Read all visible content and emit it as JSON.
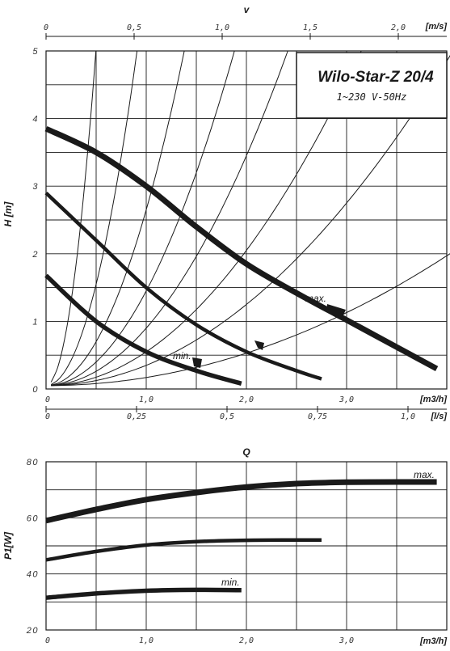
{
  "chart_data": [
    {
      "type": "line",
      "title": "Wilo-Star-Z 20/4",
      "subtitle": "1~230 V-50Hz",
      "top_axis": {
        "label": "v",
        "unit": "[m/s]",
        "ticks": [
          "0",
          "0,5",
          "1,0",
          "1,5",
          "2,0"
        ]
      },
      "x_axis": {
        "unit": "[m3/h]",
        "ticks": [
          "0",
          "1,0",
          "2,0",
          "3,0"
        ],
        "xlim": [
          0,
          4.0
        ]
      },
      "x2_axis": {
        "unit": "[l/s]",
        "ticks": [
          "0",
          "0,25",
          "0,5",
          "0,75",
          "1,0"
        ]
      },
      "y_axis": {
        "label": "H [m]",
        "ticks": [
          "0",
          "1",
          "2",
          "3",
          "4",
          "5"
        ],
        "ylim": [
          0,
          5
        ]
      },
      "grid": true,
      "series": [
        {
          "name": "max.",
          "x": [
            0,
            0.5,
            1.0,
            1.5,
            2.0,
            2.5,
            3.0,
            3.5,
            3.9
          ],
          "y": [
            3.85,
            3.5,
            3.0,
            2.4,
            1.85,
            1.42,
            1.02,
            0.62,
            0.3
          ]
        },
        {
          "x": [
            0,
            0.5,
            1.0,
            1.5,
            2.0,
            2.5,
            2.75
          ],
          "y": [
            2.9,
            2.2,
            1.5,
            0.95,
            0.55,
            0.27,
            0.15
          ]
        },
        {
          "name": "min.",
          "x": [
            0,
            0.5,
            1.0,
            1.5,
            1.95
          ],
          "y": [
            1.68,
            1.0,
            0.55,
            0.27,
            0.08
          ]
        }
      ],
      "system_curve_coefficients": [
        20,
        6,
        2.6,
        1.4,
        0.85,
        0.5,
        0.3,
        0.12
      ]
    },
    {
      "type": "line",
      "title": "Q",
      "x_axis": {
        "unit": "[m3/h]",
        "ticks": [
          "0",
          "1,0",
          "2,0",
          "3,0"
        ],
        "xlim": [
          0,
          4.0
        ]
      },
      "y_axis": {
        "label": "P1[W]",
        "ticks": [
          "20",
          "40",
          "60",
          "80"
        ],
        "ylim": [
          20,
          80
        ]
      },
      "grid": true,
      "series": [
        {
          "name": "max.",
          "x": [
            0,
            0.5,
            1.0,
            1.5,
            2.0,
            2.5,
            3.0,
            3.5,
            3.9
          ],
          "y": [
            59,
            63,
            66.5,
            69,
            71,
            72.2,
            72.7,
            72.8,
            72.8
          ]
        },
        {
          "x": [
            0,
            0.5,
            1.0,
            1.5,
            2.0,
            2.5,
            2.75
          ],
          "y": [
            45,
            48,
            50.3,
            51.5,
            52,
            52.1,
            52.1
          ]
        },
        {
          "name": "min.",
          "x": [
            0,
            0.5,
            1.0,
            1.5,
            1.95
          ],
          "y": [
            31.5,
            33,
            34,
            34.3,
            34.2
          ]
        }
      ]
    }
  ]
}
